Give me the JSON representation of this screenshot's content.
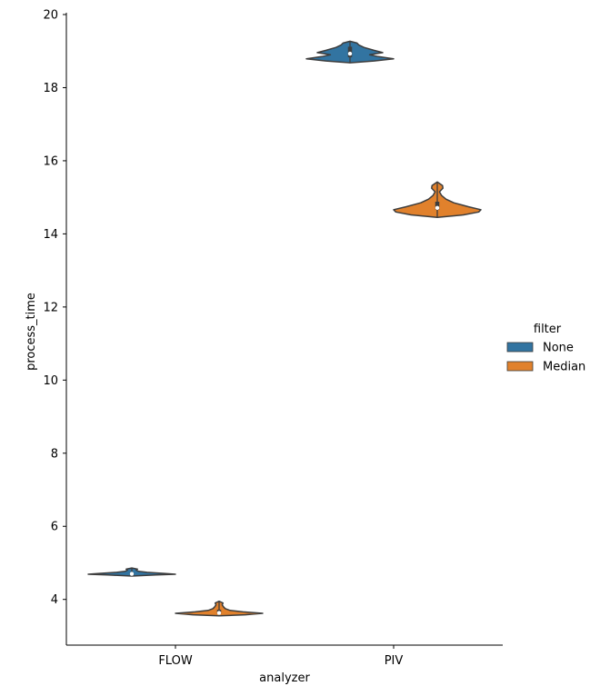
{
  "chart_data": {
    "type": "violin",
    "xlabel": "analyzer",
    "ylabel": "process_time",
    "categories": [
      "FLOW",
      "PIV"
    ],
    "ylim": [
      2.75,
      20.05
    ],
    "yticks": [
      4,
      6,
      8,
      10,
      12,
      14,
      16,
      18,
      20
    ],
    "legend": {
      "title": "filter",
      "position": "right"
    },
    "series": [
      {
        "name": "None",
        "color": "#3274a1",
        "violins": [
          {
            "category": "FLOW",
            "min": 4.64,
            "max": 4.86,
            "q1": 4.67,
            "median": 4.7,
            "q3": 4.73,
            "profile": [
              [
                4.64,
                0.0
              ],
              [
                4.67,
                0.55
              ],
              [
                4.69,
                1.0
              ],
              [
                4.71,
                0.75
              ],
              [
                4.74,
                0.35
              ],
              [
                4.77,
                0.15
              ],
              [
                4.8,
                0.1
              ],
              [
                4.83,
                0.13
              ],
              [
                4.86,
                0.0
              ]
            ]
          },
          {
            "category": "PIV",
            "min": 18.68,
            "max": 19.27,
            "q1": 18.83,
            "median": 18.93,
            "q3": 19.12,
            "profile": [
              [
                18.68,
                0.0
              ],
              [
                18.73,
                0.55
              ],
              [
                18.79,
                1.0
              ],
              [
                18.85,
                0.65
              ],
              [
                18.9,
                0.45
              ],
              [
                18.96,
                0.75
              ],
              [
                19.02,
                0.55
              ],
              [
                19.1,
                0.32
              ],
              [
                19.17,
                0.2
              ],
              [
                19.22,
                0.16
              ],
              [
                19.27,
                0.0
              ]
            ]
          }
        ]
      },
      {
        "name": "Median",
        "color": "#e1812c",
        "violins": [
          {
            "category": "FLOW",
            "min": 3.55,
            "max": 3.95,
            "q1": 3.6,
            "median": 3.63,
            "q3": 3.72,
            "profile": [
              [
                3.55,
                0.0
              ],
              [
                3.58,
                0.6
              ],
              [
                3.62,
                1.0
              ],
              [
                3.66,
                0.55
              ],
              [
                3.7,
                0.25
              ],
              [
                3.75,
                0.14
              ],
              [
                3.8,
                0.1
              ],
              [
                3.85,
                0.07
              ],
              [
                3.9,
                0.09
              ],
              [
                3.95,
                0.0
              ]
            ]
          },
          {
            "category": "PIV",
            "min": 14.45,
            "max": 15.42,
            "q1": 14.66,
            "median": 14.71,
            "q3": 14.88,
            "profile": [
              [
                14.45,
                0.0
              ],
              [
                14.52,
                0.6
              ],
              [
                14.6,
                0.95
              ],
              [
                14.66,
                1.0
              ],
              [
                14.74,
                0.72
              ],
              [
                14.85,
                0.38
              ],
              [
                14.95,
                0.2
              ],
              [
                15.05,
                0.1
              ],
              [
                15.15,
                0.05
              ],
              [
                15.25,
                0.13
              ],
              [
                15.32,
                0.12
              ],
              [
                15.38,
                0.05
              ],
              [
                15.42,
                0.0
              ]
            ]
          }
        ]
      }
    ]
  }
}
